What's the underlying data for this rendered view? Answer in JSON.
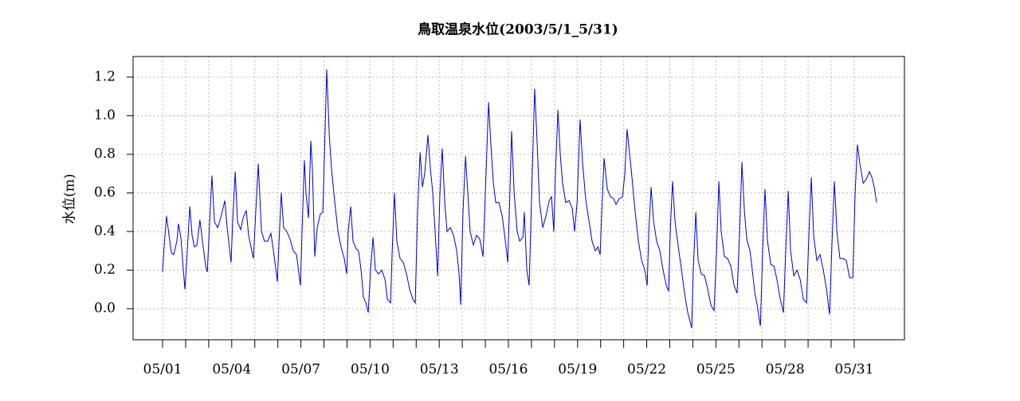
{
  "chart_data": {
    "type": "line",
    "title": "鳥取温泉水位(2003/5/1_5/31)",
    "ylabel": "水位(m)",
    "x": [
      0,
      0.07,
      0.17,
      0.28,
      0.38,
      0.48,
      0.62,
      0.69,
      0.8,
      0.9,
      0.97,
      1.07,
      1.18,
      1.28,
      1.38,
      1.49,
      1.62,
      1.73,
      1.87,
      1.94,
      2.04,
      2.14,
      2.25,
      2.39,
      2.52,
      2.7,
      2.8,
      2.97,
      3.04,
      3.15,
      3.25,
      3.39,
      3.49,
      3.63,
      3.73,
      3.94,
      4.04,
      4.15,
      4.29,
      4.42,
      4.56,
      4.7,
      4.81,
      4.98,
      5.05,
      5.15,
      5.25,
      5.39,
      5.53,
      5.67,
      5.81,
      5.98,
      6.05,
      6.15,
      6.22,
      6.33,
      6.43,
      6.5,
      6.6,
      6.71,
      6.84,
      6.95,
      7.02,
      7.12,
      7.23,
      7.33,
      7.47,
      7.61,
      7.74,
      7.88,
      7.99,
      8.05,
      8.16,
      8.26,
      8.4,
      8.5,
      8.61,
      8.71,
      8.82,
      8.92,
      9.02,
      9.13,
      9.23,
      9.37,
      9.51,
      9.65,
      9.75,
      9.89,
      9.96,
      10.06,
      10.16,
      10.3,
      10.44,
      10.58,
      10.72,
      10.85,
      10.96,
      11.06,
      11.17,
      11.27,
      11.37,
      11.51,
      11.62,
      11.72,
      11.82,
      11.93,
      12.03,
      12.13,
      12.24,
      12.34,
      12.48,
      12.62,
      12.76,
      12.86,
      12.93,
      13.03,
      13.14,
      13.24,
      13.34,
      13.48,
      13.62,
      13.76,
      13.9,
      14.0,
      14.14,
      14.24,
      14.35,
      14.45,
      14.59,
      14.73,
      14.87,
      14.97,
      15.04,
      15.14,
      15.25,
      15.38,
      15.49,
      15.63,
      15.69,
      15.8,
      15.9,
      16.01,
      16.14,
      16.25,
      16.35,
      16.49,
      16.63,
      16.77,
      16.87,
      16.97,
      17.04,
      17.15,
      17.25,
      17.35,
      17.49,
      17.63,
      17.77,
      17.87,
      17.98,
      18.11,
      18.22,
      18.36,
      18.49,
      18.63,
      18.77,
      18.88,
      18.98,
      19.05,
      19.15,
      19.29,
      19.43,
      19.57,
      19.67,
      19.81,
      19.95,
      20.05,
      20.15,
      20.26,
      20.36,
      20.5,
      20.64,
      20.78,
      20.92,
      21.02,
      21.09,
      21.19,
      21.3,
      21.43,
      21.57,
      21.71,
      21.85,
      21.95,
      22.02,
      22.12,
      22.23,
      22.37,
      22.51,
      22.64,
      22.78,
      22.95,
      23.02,
      23.13,
      23.23,
      23.37,
      23.51,
      23.65,
      23.78,
      23.92,
      24.03,
      24.13,
      24.23,
      24.37,
      24.51,
      24.65,
      24.79,
      24.92,
      25.03,
      25.13,
      25.24,
      25.34,
      25.48,
      25.58,
      25.69,
      25.79,
      25.93,
      26.03,
      26.13,
      26.24,
      26.38,
      26.52,
      26.65,
      26.79,
      26.93,
      27.03,
      27.14,
      27.24,
      27.38,
      27.52,
      27.66,
      27.79,
      27.93,
      28.04,
      28.14,
      28.24,
      28.38,
      28.52,
      28.66,
      28.8,
      28.93,
      29.04,
      29.14,
      29.25,
      29.38,
      29.52,
      29.66,
      29.8,
      29.94,
      30.04,
      30.14,
      30.25,
      30.39,
      30.52,
      30.66,
      30.77,
      30.87,
      30.97
    ],
    "series": [
      {
        "color": "#0000cc",
        "values": [
          0.19,
          0.33,
          0.48,
          0.38,
          0.29,
          0.28,
          0.35,
          0.44,
          0.36,
          0.2,
          0.1,
          0.3,
          0.53,
          0.38,
          0.32,
          0.33,
          0.46,
          0.35,
          0.22,
          0.19,
          0.45,
          0.69,
          0.45,
          0.42,
          0.47,
          0.56,
          0.42,
          0.24,
          0.45,
          0.71,
          0.45,
          0.41,
          0.47,
          0.51,
          0.38,
          0.26,
          0.5,
          0.75,
          0.4,
          0.35,
          0.35,
          0.39,
          0.3,
          0.14,
          0.35,
          0.6,
          0.42,
          0.4,
          0.36,
          0.3,
          0.28,
          0.12,
          0.4,
          0.77,
          0.6,
          0.47,
          0.87,
          0.72,
          0.27,
          0.42,
          0.49,
          0.5,
          0.8,
          1.24,
          0.9,
          0.72,
          0.55,
          0.4,
          0.32,
          0.26,
          0.18,
          0.4,
          0.53,
          0.35,
          0.31,
          0.3,
          0.2,
          0.06,
          0.03,
          -0.02,
          0.2,
          0.37,
          0.2,
          0.18,
          0.2,
          0.15,
          0.05,
          0.03,
          0.3,
          0.6,
          0.35,
          0.26,
          0.24,
          0.18,
          0.1,
          0.05,
          0.03,
          0.5,
          0.81,
          0.63,
          0.7,
          0.9,
          0.72,
          0.6,
          0.4,
          0.17,
          0.6,
          0.83,
          0.55,
          0.4,
          0.42,
          0.38,
          0.3,
          0.18,
          0.02,
          0.5,
          0.79,
          0.6,
          0.4,
          0.33,
          0.38,
          0.36,
          0.27,
          0.6,
          1.07,
          0.85,
          0.65,
          0.55,
          0.55,
          0.48,
          0.35,
          0.24,
          0.5,
          0.92,
          0.6,
          0.4,
          0.35,
          0.37,
          0.5,
          0.2,
          0.12,
          0.6,
          1.14,
          0.85,
          0.55,
          0.42,
          0.48,
          0.56,
          0.58,
          0.4,
          0.7,
          1.03,
          0.8,
          0.65,
          0.55,
          0.56,
          0.52,
          0.4,
          0.55,
          0.98,
          0.75,
          0.56,
          0.46,
          0.35,
          0.3,
          0.32,
          0.28,
          0.5,
          0.78,
          0.62,
          0.58,
          0.57,
          0.54,
          0.57,
          0.58,
          0.7,
          0.93,
          0.8,
          0.68,
          0.5,
          0.35,
          0.25,
          0.2,
          0.12,
          0.4,
          0.63,
          0.45,
          0.35,
          0.3,
          0.2,
          0.12,
          0.09,
          0.4,
          0.66,
          0.45,
          0.32,
          0.2,
          0.08,
          -0.02,
          -0.1,
          0.2,
          0.5,
          0.25,
          0.18,
          0.17,
          0.1,
          0.02,
          -0.01,
          0.3,
          0.66,
          0.4,
          0.27,
          0.26,
          0.22,
          0.12,
          0.08,
          0.4,
          0.76,
          0.5,
          0.36,
          0.3,
          0.2,
          0.08,
          0.02,
          -0.09,
          0.3,
          0.62,
          0.35,
          0.23,
          0.22,
          0.15,
          0.05,
          -0.02,
          0.3,
          0.61,
          0.3,
          0.17,
          0.2,
          0.15,
          0.05,
          0.03,
          0.4,
          0.68,
          0.38,
          0.25,
          0.28,
          0.2,
          0.1,
          -0.03,
          0.35,
          0.66,
          0.4,
          0.26,
          0.26,
          0.25,
          0.16,
          0.16,
          0.6,
          0.85,
          0.75,
          0.65,
          0.67,
          0.71,
          0.68,
          0.63,
          0.55
        ]
      }
    ],
    "xlim": [
      -1.28,
      32.18
    ],
    "xticks": [
      {
        "value": 0,
        "label": "05/01"
      },
      {
        "value": 3,
        "label": "05/04"
      },
      {
        "value": 6,
        "label": "05/07"
      },
      {
        "value": 9,
        "label": "05/10"
      },
      {
        "value": 12,
        "label": "05/13"
      },
      {
        "value": 15,
        "label": "05/16"
      },
      {
        "value": 18,
        "label": "05/19"
      },
      {
        "value": 21,
        "label": "05/22"
      },
      {
        "value": 24,
        "label": "05/25"
      },
      {
        "value": 27,
        "label": "05/28"
      },
      {
        "value": 30,
        "label": "05/31"
      }
    ],
    "xminor_ticks": [
      0,
      1,
      2,
      3,
      4,
      5,
      6,
      7,
      8,
      9,
      10,
      11,
      12,
      13,
      14,
      15,
      16,
      17,
      18,
      19,
      20,
      21,
      22,
      23,
      24,
      25,
      26,
      27,
      28,
      29,
      30
    ],
    "ylim": [
      -0.161,
      1.307
    ],
    "yticks": [
      {
        "value": 0,
        "label": "0.0"
      },
      0.2,
      0.4,
      0.6,
      0.8,
      {
        "value": 1,
        "label": "1.0"
      },
      1.2
    ],
    "grid": true
  }
}
